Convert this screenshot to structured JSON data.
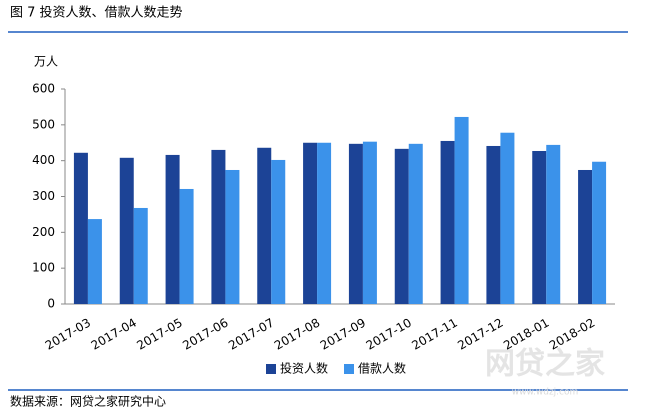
{
  "chart_data": {
    "type": "bar",
    "title": "图 7 投资人数、借款人数走势",
    "y_label": "万人",
    "categories": [
      "2017-03",
      "2017-04",
      "2017-05",
      "2017-06",
      "2017-07",
      "2017-08",
      "2017-09",
      "2017-10",
      "2017-11",
      "2017-12",
      "2018-01",
      "2018-02"
    ],
    "series": [
      {
        "name": "投资人数",
        "color": "#1c4396",
        "values": [
          422,
          408,
          416,
          430,
          436,
          450,
          447,
          433,
          455,
          441,
          427,
          374
        ]
      },
      {
        "name": "借款人数",
        "color": "#3b92ea",
        "values": [
          237,
          268,
          321,
          374,
          402,
          450,
          453,
          447,
          522,
          478,
          444,
          397
        ]
      }
    ],
    "ylim": [
      0,
      600
    ],
    "yticks": [
      0,
      100,
      200,
      300,
      400,
      500,
      600
    ],
    "grid": false,
    "legend": "bottom",
    "source": "数据来源：网贷之家研究中心",
    "watermark": "网贷之家",
    "watermark_sub": "www.wdzj.com"
  }
}
